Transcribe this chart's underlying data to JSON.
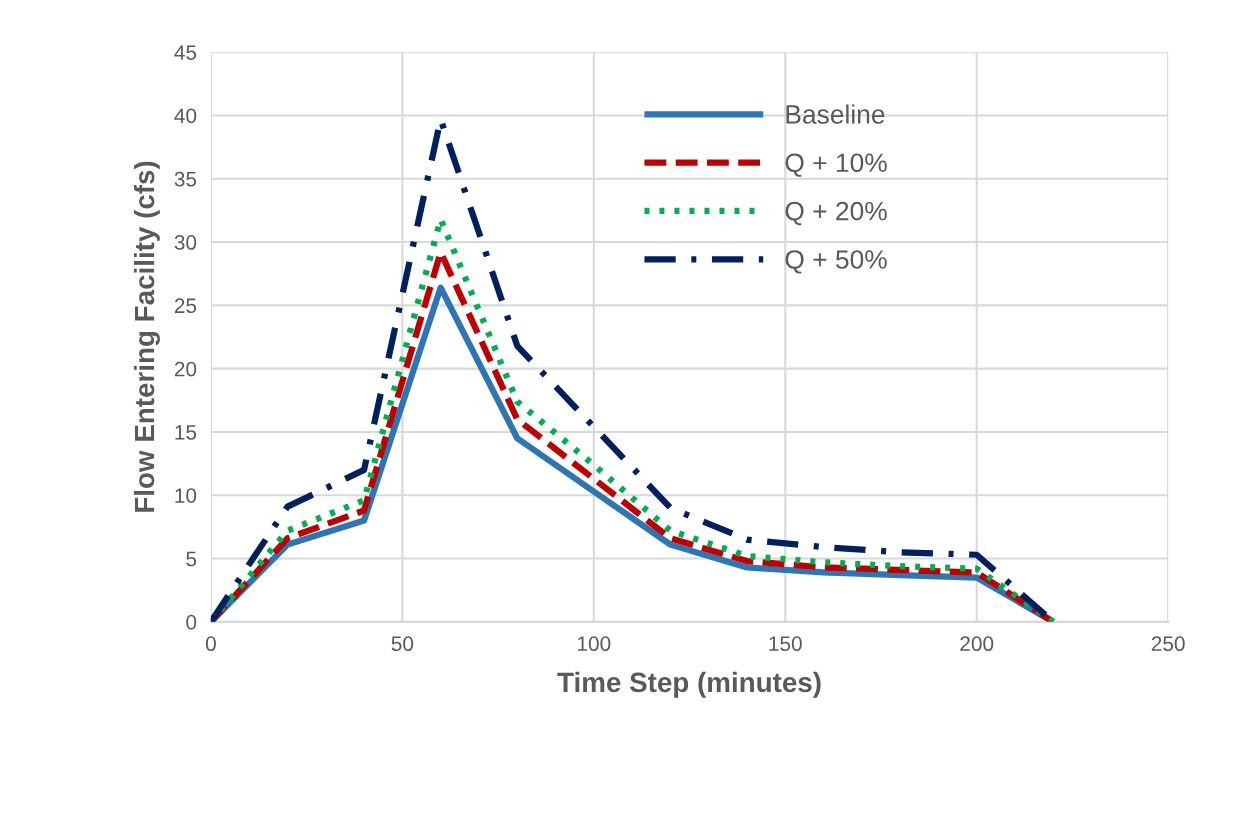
{
  "chart_data": {
    "type": "line",
    "xlabel": "Time Step (minutes)",
    "ylabel": "Flow Entering Facility (cfs)",
    "x": [
      0,
      20,
      40,
      60,
      80,
      100,
      120,
      140,
      160,
      180,
      200,
      220
    ],
    "series": [
      {
        "name": "Baseline",
        "color": "#2e75b6",
        "line_style": "solid",
        "values": [
          0,
          6.1,
          8.0,
          26.4,
          14.5,
          10.3,
          6.1,
          4.3,
          3.9,
          3.7,
          3.5,
          0
        ]
      },
      {
        "name": "Q + 10%",
        "color": "#c00000",
        "line_style": "dashed",
        "values": [
          0,
          6.6,
          8.8,
          29.2,
          16.0,
          11.3,
          6.6,
          4.8,
          4.3,
          4.1,
          3.9,
          0
        ]
      },
      {
        "name": "Q + 20%",
        "color": "#00b050",
        "line_style": "dotted",
        "values": [
          0,
          7.2,
          9.6,
          31.8,
          17.4,
          12.4,
          7.2,
          5.2,
          4.7,
          4.4,
          4.2,
          0
        ]
      },
      {
        "name": "Q + 50%",
        "color": "#002060",
        "line_style": "dashdot",
        "values": [
          0,
          9.1,
          12.0,
          39.7,
          21.8,
          15.4,
          9.0,
          6.5,
          5.9,
          5.5,
          5.3,
          0
        ]
      }
    ],
    "xlim": [
      0,
      250
    ],
    "xticks": [
      0,
      50,
      100,
      150,
      200,
      250
    ],
    "ylim": [
      0,
      45
    ],
    "yticks": [
      0,
      5,
      10,
      15,
      20,
      25,
      30,
      35,
      40,
      45
    ],
    "grid": true,
    "legend": "top",
    "marker": "none"
  }
}
